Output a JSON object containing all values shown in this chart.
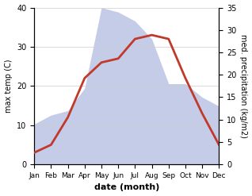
{
  "months": [
    "Jan",
    "Feb",
    "Mar",
    "Apr",
    "May",
    "Jun",
    "Jul",
    "Aug",
    "Sep",
    "Oct",
    "Nov",
    "Dec"
  ],
  "temperature": [
    3,
    5,
    12,
    22,
    26,
    27,
    32,
    33,
    32,
    22,
    13,
    5
  ],
  "precipitation": [
    9,
    11,
    12,
    17,
    35,
    34,
    32,
    28,
    18,
    18,
    15,
    13
  ],
  "temp_color": "#c0392b",
  "precip_fill_color": "#c5cce8",
  "precip_edge_color": "#aab4d8",
  "temp_ylim": [
    0,
    40
  ],
  "precip_ylim": [
    0,
    35
  ],
  "temp_yticks": [
    0,
    10,
    20,
    30,
    40
  ],
  "precip_yticks": [
    0,
    5,
    10,
    15,
    20,
    25,
    30,
    35
  ],
  "xlabel": "date (month)",
  "ylabel_left": "max temp (C)",
  "ylabel_right": "med. precipitation (kg/m2)",
  "bg_color": "#ffffff",
  "temp_linewidth": 2.0
}
